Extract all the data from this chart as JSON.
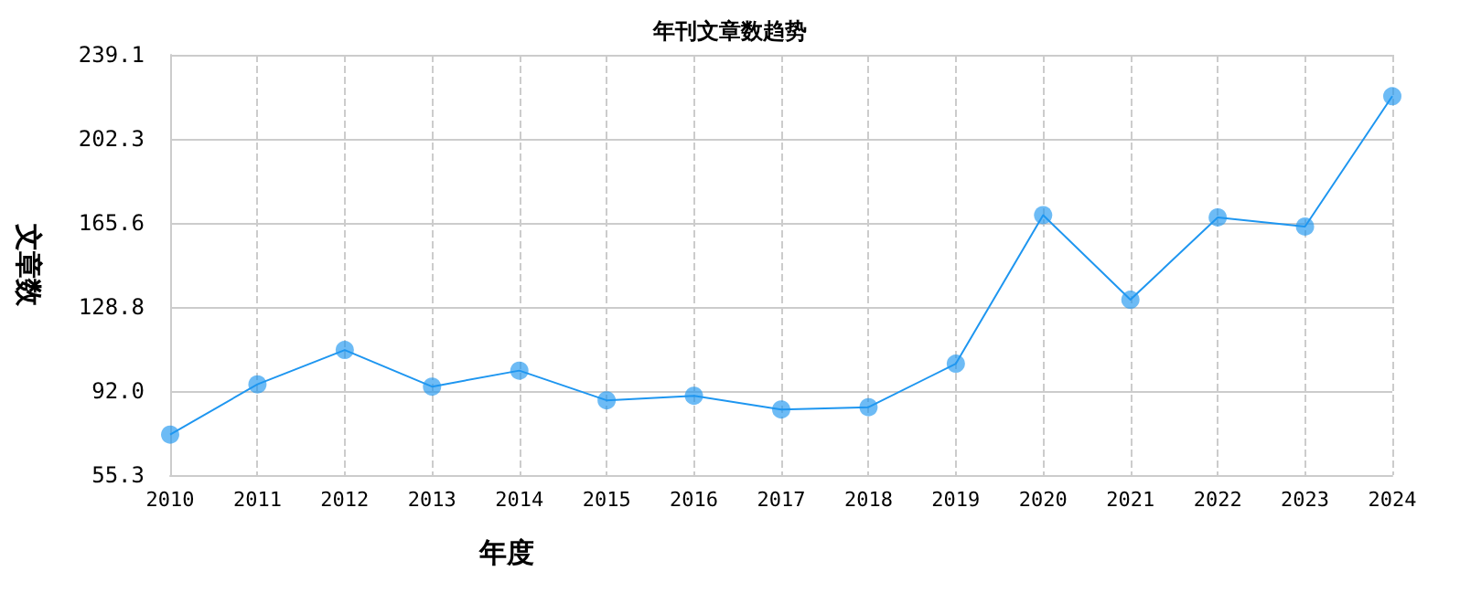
{
  "chart_data": {
    "type": "line",
    "title": "年刊文章数趋势",
    "xlabel": "年度",
    "ylabel": "文章数",
    "categories": [
      "2010",
      "2011",
      "2012",
      "2013",
      "2014",
      "2015",
      "2016",
      "2017",
      "2018",
      "2019",
      "2020",
      "2021",
      "2022",
      "2023",
      "2024"
    ],
    "series": [
      {
        "color": "#1e96f0",
        "values": [
          73,
          95,
          110,
          94,
          101,
          88,
          90,
          84,
          85,
          104,
          169,
          132,
          168,
          164,
          221
        ]
      }
    ],
    "ylim": [
      55.3,
      239.1
    ],
    "yticks": [
      55.3,
      {
        "value": 92,
        "label": "92.0"
      },
      128.8,
      165.6,
      202.3,
      239.1
    ],
    "grid": true,
    "marker": "circle",
    "line_style": "solid"
  }
}
